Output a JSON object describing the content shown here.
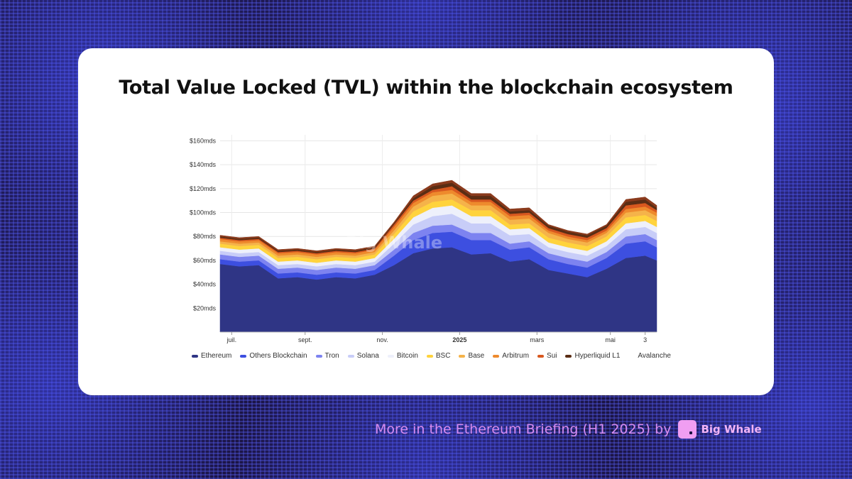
{
  "card": {
    "title": "Total Value Locked (TVL) within the blockchain ecosystem"
  },
  "footer": {
    "text": "More in the Ethereum Briefing (H1 2025) by",
    "brand": "Big Whale",
    "logo_color": "#f09ef2",
    "text_color": "#d78cf0"
  },
  "watermark": "Big Whale",
  "chart_data": {
    "type": "area",
    "stacked": true,
    "title": "",
    "xlabel": "",
    "ylabel": "",
    "ylim": [
      0,
      165
    ],
    "yticks": [
      20,
      40,
      60,
      80,
      100,
      120,
      140,
      160
    ],
    "ytick_labels": [
      "$20mds",
      "$40mds",
      "$60mds",
      "$80mds",
      "$100mds",
      "$120mds",
      "$140mds",
      "$160mds"
    ],
    "grid": true,
    "legend_position": "bottom",
    "x_tick_labels": [
      {
        "label": "juil.",
        "x": 0.3
      },
      {
        "label": "sept.",
        "x": 2.2
      },
      {
        "label": "nov.",
        "x": 4.2
      },
      {
        "label": "2025",
        "x": 6.2,
        "bold": true
      },
      {
        "label": "mars",
        "x": 8.2
      },
      {
        "label": "mai",
        "x": 10.1
      },
      {
        "label": "3",
        "x": 11.0
      }
    ],
    "x": [
      0,
      0.5,
      1.0,
      1.5,
      2.0,
      2.5,
      3.0,
      3.5,
      4.0,
      4.5,
      5.0,
      5.5,
      6.0,
      6.5,
      7.0,
      7.5,
      8.0,
      8.5,
      9.0,
      9.5,
      10.0,
      10.5,
      11.0,
      11.3
    ],
    "series": [
      {
        "name": "Ethereum",
        "color": "#2f3585",
        "values": [
          57,
          55,
          56,
          45,
          46,
          44,
          46,
          45,
          48,
          56,
          66,
          70,
          71,
          65,
          66,
          59,
          61,
          52,
          49,
          46,
          53,
          62,
          64,
          60
        ]
      },
      {
        "name": "Others Blockchain",
        "color": "#3d4fe0",
        "values": [
          4,
          4,
          4,
          4,
          4,
          4,
          4,
          4,
          4,
          8,
          11,
          13,
          13,
          12,
          11,
          10,
          10,
          9,
          8,
          8,
          9,
          12,
          12,
          11
        ]
      },
      {
        "name": "Tron",
        "color": "#7d83f0",
        "values": [
          4,
          4,
          4,
          4,
          4,
          4,
          4,
          4,
          4,
          5,
          6,
          6,
          6,
          6,
          6,
          5,
          5,
          5,
          5,
          5,
          5,
          6,
          6,
          6
        ]
      },
      {
        "name": "Solana",
        "color": "#c8cdf8",
        "values": [
          3,
          3,
          3,
          3,
          3,
          3,
          3,
          3,
          3,
          5,
          7,
          8,
          9,
          8,
          8,
          7,
          6,
          5,
          5,
          5,
          5,
          6,
          6,
          6
        ]
      },
      {
        "name": "Bitcoin",
        "color": "#eef0fb",
        "values": [
          3,
          3,
          3,
          3,
          3,
          3,
          3,
          3,
          3,
          4,
          6,
          7,
          7,
          6,
          6,
          5,
          5,
          4,
          4,
          4,
          4,
          5,
          5,
          5
        ]
      },
      {
        "name": "BSC",
        "color": "#ffd33d",
        "values": [
          3,
          3,
          3,
          3,
          3,
          3,
          3,
          3,
          3,
          4,
          5,
          5,
          5,
          5,
          5,
          4,
          4,
          4,
          4,
          4,
          4,
          5,
          5,
          5
        ]
      },
      {
        "name": "Base",
        "color": "#f5b34a",
        "values": [
          2,
          2,
          2,
          2,
          2,
          2,
          2,
          2,
          2,
          3,
          4,
          5,
          5,
          4,
          4,
          4,
          4,
          4,
          3,
          3,
          3,
          4,
          4,
          4
        ]
      },
      {
        "name": "Arbitrum",
        "color": "#ee8a2d",
        "values": [
          2,
          2,
          2,
          2,
          2,
          2,
          2,
          2,
          2,
          3,
          3,
          3,
          3,
          3,
          3,
          3,
          3,
          2,
          2,
          2,
          2,
          3,
          3,
          3
        ]
      },
      {
        "name": "Sui",
        "color": "#d8581f",
        "values": [
          1,
          1,
          1,
          1,
          1,
          1,
          1,
          1,
          1,
          2,
          2,
          2,
          3,
          2,
          2,
          2,
          2,
          2,
          2,
          2,
          2,
          3,
          3,
          2
        ]
      },
      {
        "name": "Hyperliquid L1",
        "color": "#5a2d14",
        "values": [
          1,
          1,
          1,
          1,
          1,
          1,
          1,
          1,
          1,
          1,
          2,
          3,
          3,
          3,
          3,
          2,
          2,
          2,
          2,
          2,
          2,
          3,
          3,
          2
        ]
      },
      {
        "name": "Avalanche",
        "color": "#8a3a1c",
        "values": [
          1,
          1,
          1,
          1,
          1,
          1,
          1,
          1,
          1,
          1,
          2,
          2,
          2,
          2,
          2,
          2,
          2,
          1,
          1,
          1,
          1,
          2,
          2,
          2
        ]
      }
    ]
  }
}
